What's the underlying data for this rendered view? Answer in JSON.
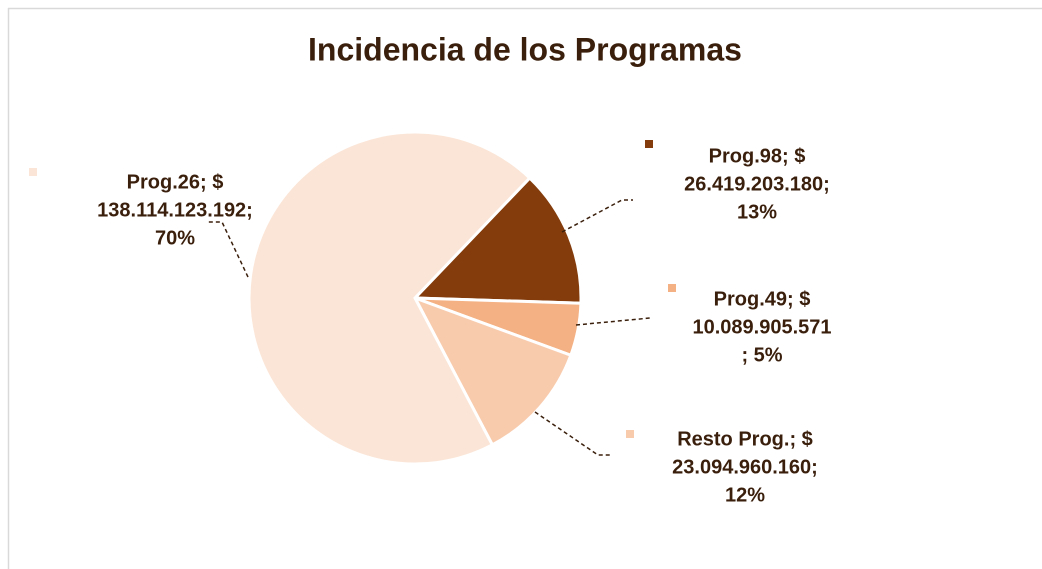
{
  "chart_data": {
    "type": "pie",
    "title": "Incidencia de los Programas",
    "values": [
      26419203180,
      10089905571,
      23094960160,
      138114123192
    ],
    "colors": [
      "#843c0c",
      "#f4b183",
      "#f8cbad",
      "#fbe5d6"
    ],
    "value_labels": [
      [
        "Prog.98; $",
        "26.419.203.180;",
        "13%"
      ],
      [
        "Prog.49; $",
        "10.089.905.571",
        "; 5%"
      ],
      [
        "Resto Prog.; $",
        "23.094.960.160;",
        "12%"
      ],
      [
        "Prog.26; $",
        "138.114.123.192;",
        "70%"
      ]
    ]
  }
}
